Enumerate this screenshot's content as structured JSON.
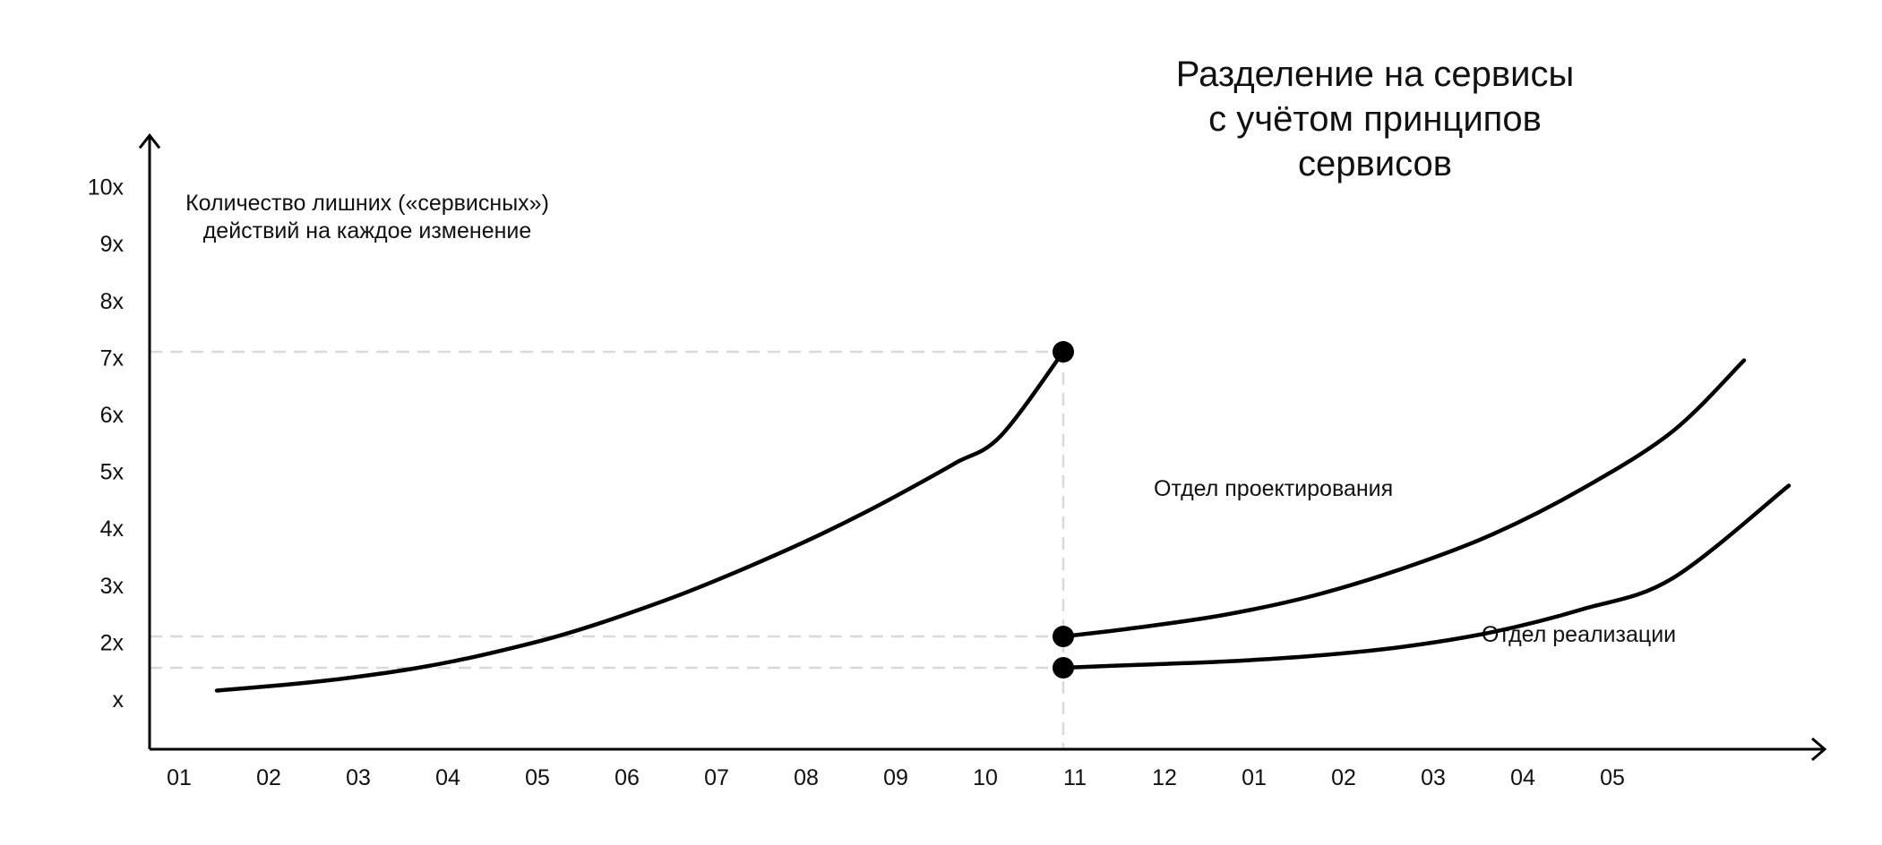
{
  "chart_data": {
    "type": "line",
    "title": "Разделение на сервисы\nс учётом принципов\nсервисов",
    "title_lines": [
      "Разделение на сервисы",
      "с учётом принципов",
      "сервисов"
    ],
    "ylabel_lines": [
      "Количество лишних («сервисных»)",
      "действий на каждое изменение"
    ],
    "xlabel": "",
    "x_ticks": [
      "01",
      "02",
      "03",
      "04",
      "05",
      "06",
      "07",
      "08",
      "09",
      "10",
      "11",
      "12",
      "01",
      "02",
      "03",
      "04",
      "05"
    ],
    "y_ticks": [
      "x",
      "2x",
      "3x",
      "4x",
      "5x",
      "6x",
      "7x",
      "8x",
      "9x",
      "10x"
    ],
    "y_tick_values": [
      1,
      2,
      3,
      4,
      5,
      6,
      7,
      8,
      9,
      10
    ],
    "xlim": [
      0.75,
      18.5
    ],
    "ylim": [
      0,
      10.9
    ],
    "grid": false,
    "series": [
      {
        "x": [
          0.75,
          1.5,
          2,
          2.5,
          3,
          3.5,
          4,
          4.5,
          5,
          5.5,
          6,
          6.5,
          7,
          7.5,
          8,
          8.5,
          9,
          9.5,
          10.2
        ],
        "values": [
          1.15,
          1.25,
          1.33,
          1.43,
          1.55,
          1.7,
          1.88,
          2.08,
          2.32,
          2.59,
          2.88,
          3.2,
          3.54,
          3.9,
          4.29,
          4.71,
          5.15,
          5.62,
          7.1
        ],
        "marker_end": true
      },
      {
        "name": "Отдел проектирования",
        "x": [
          10.2,
          11,
          12,
          13,
          14,
          15,
          16,
          17,
          17.8
        ],
        "values": [
          2.1,
          2.25,
          2.48,
          2.82,
          3.3,
          3.9,
          4.7,
          5.7,
          6.95
        ],
        "marker_start": true
      },
      {
        "name": "Отдел реализации",
        "x": [
          10.2,
          11,
          12,
          13,
          14,
          15,
          16,
          17,
          18.3
        ],
        "values": [
          1.55,
          1.6,
          1.66,
          1.76,
          1.92,
          2.18,
          2.58,
          3.12,
          4.75
        ],
        "marker_start": true
      }
    ],
    "reference_lines": {
      "horizontal": [
        7.1,
        2.1,
        1.55
      ],
      "vertical_x": 10.2,
      "style": "dashed"
    },
    "colors": {
      "line": "#000000",
      "reference": "#d9d9d9",
      "text": "#111111"
    }
  }
}
